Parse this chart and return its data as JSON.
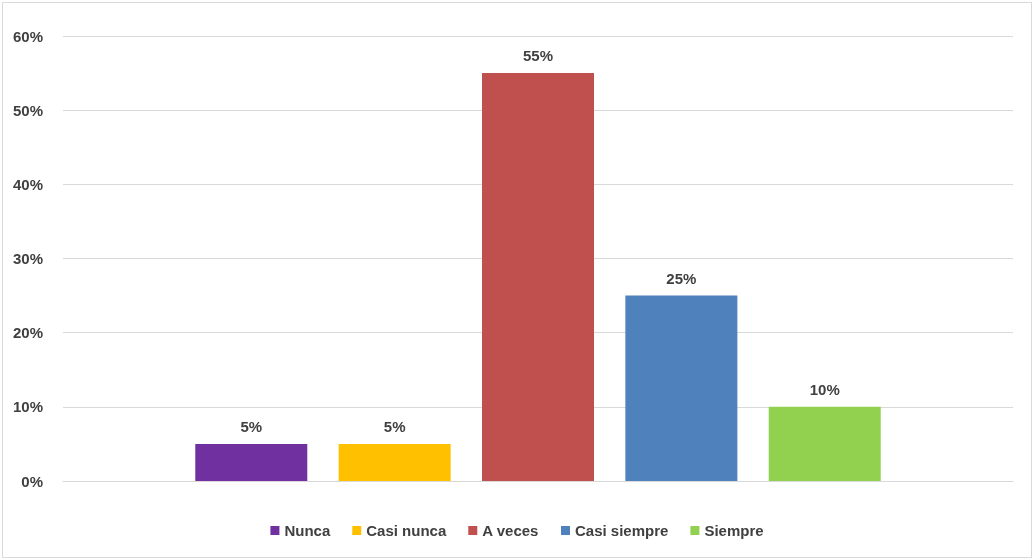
{
  "chart_data": {
    "type": "bar",
    "categories": [
      null
    ],
    "series": [
      {
        "name": "Nunca",
        "color": "#7030a0",
        "values": [
          5
        ],
        "value_labels": [
          "5%"
        ]
      },
      {
        "name": "Casi nunca",
        "color": "#ffc000",
        "values": [
          5
        ],
        "value_labels": [
          "5%"
        ]
      },
      {
        "name": "A veces",
        "color": "#c0504d",
        "values": [
          55
        ],
        "value_labels": [
          "55%"
        ]
      },
      {
        "name": "Casi siempre",
        "color": "#4f81bd",
        "values": [
          25
        ],
        "value_labels": [
          "25%"
        ]
      },
      {
        "name": "Siempre",
        "color": "#92d050",
        "values": [
          10
        ],
        "value_labels": [
          "10%"
        ]
      }
    ],
    "ylim": [
      0,
      60
    ],
    "yticks": [
      {
        "value": 0,
        "label": "0%"
      },
      {
        "value": 10,
        "label": "10%"
      },
      {
        "value": 20,
        "label": "20%"
      },
      {
        "value": 30,
        "label": "30%"
      },
      {
        "value": 40,
        "label": "40%"
      },
      {
        "value": 50,
        "label": "50%"
      },
      {
        "value": 60,
        "label": "60%"
      }
    ],
    "grid": "y",
    "legend": "bottom"
  }
}
